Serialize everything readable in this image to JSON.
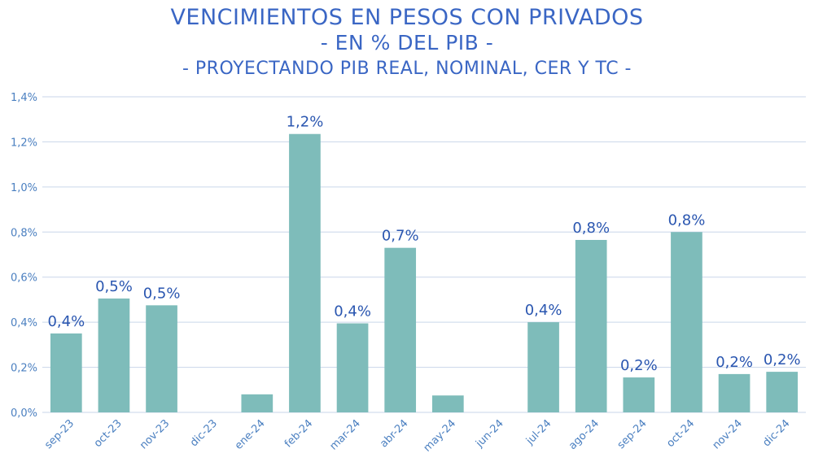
{
  "chart_data": {
    "type": "bar",
    "title": "VENCIMIENTOS EN PESOS CON PRIVADOS",
    "subtitle": "- EN % DEL PIB -",
    "subtitle2": "- PROYECTANDO  PIB REAL, NOMINAL, CER Y TC -",
    "xlabel": "",
    "ylabel": "",
    "ylim": [
      0,
      1.4
    ],
    "yticks": [
      0,
      0.2,
      0.4,
      0.6,
      0.8,
      1.0,
      1.2,
      1.4
    ],
    "ytick_labels": [
      "0,0%",
      "0,2%",
      "0,4%",
      "0,6%",
      "0,8%",
      "1,0%",
      "1,2%",
      "1,4%"
    ],
    "grid": true,
    "categories": [
      "sep-23",
      "oct-23",
      "nov-23",
      "dic-23",
      "ene-24",
      "feb-24",
      "mar-24",
      "abr-24",
      "may-24",
      "jun-24",
      "jul-24",
      "ago-24",
      "sep-24",
      "oct-24",
      "nov-24",
      "dic-24"
    ],
    "values": [
      0.35,
      0.505,
      0.475,
      0,
      0.08,
      1.235,
      0.395,
      0.73,
      0.075,
      0,
      0.4,
      0.765,
      0.155,
      0.8,
      0.17,
      0.18
    ],
    "data_labels": [
      "0,4%",
      "0,5%",
      "0,5%",
      "",
      "",
      "1,2%",
      "0,4%",
      "0,7%",
      "",
      "",
      "0,4%",
      "0,8%",
      "0,2%",
      "0,8%",
      "0,2%",
      "0,2%"
    ],
    "colors": {
      "bar": "#7ebcba",
      "grid": "#c9d6ea",
      "axis_text": "#4a7fc0",
      "label": "#2a56b0",
      "title": "#3a66c4"
    }
  }
}
